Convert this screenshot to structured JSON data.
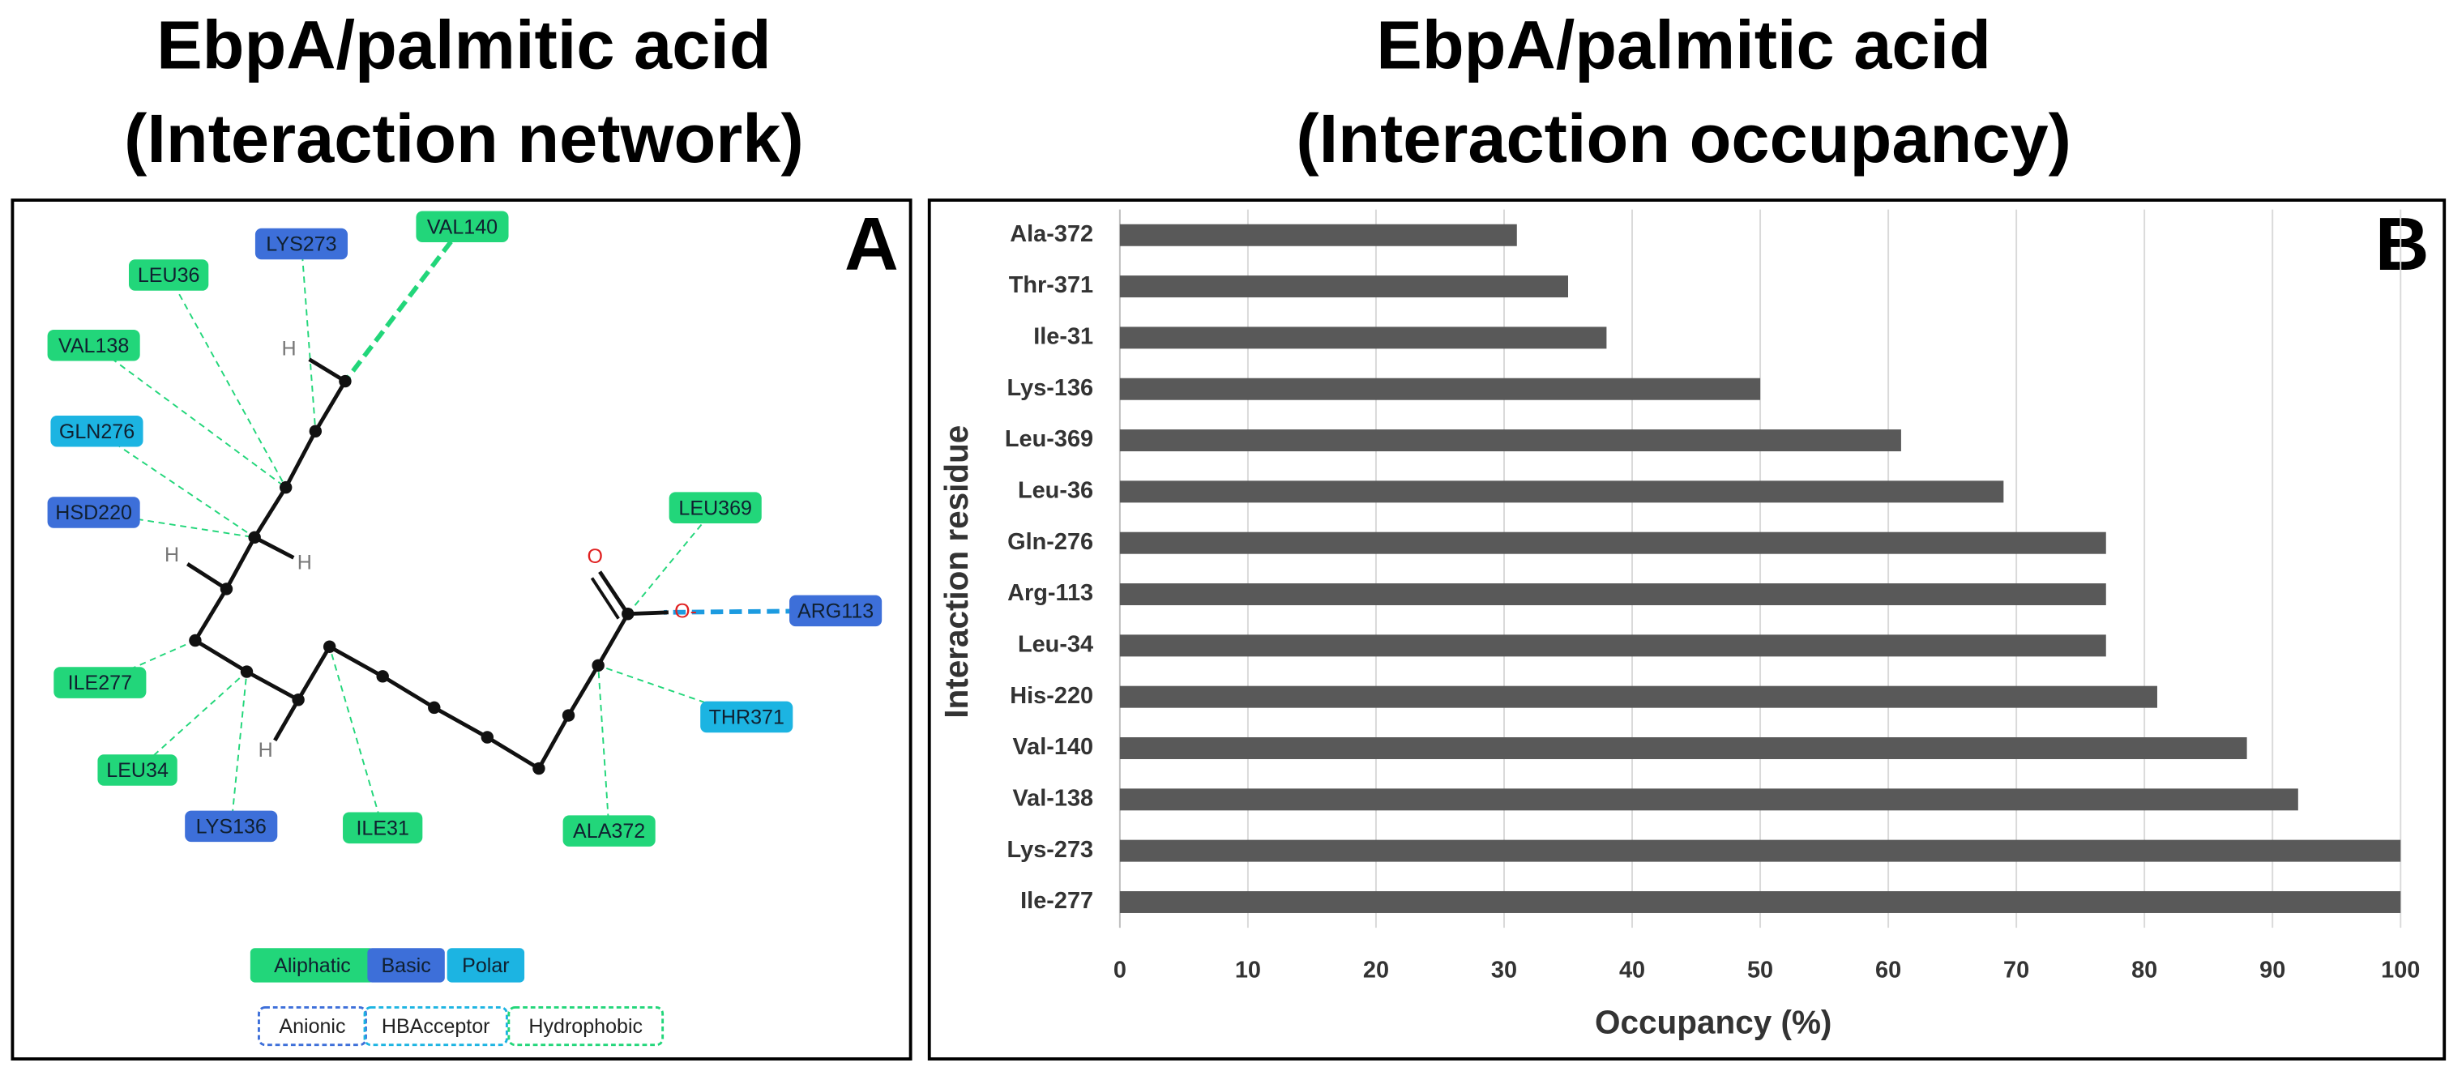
{
  "diagram": {
    "title": [
      "EbpA/palmitic acid",
      "(Interaction network)"
    ],
    "panel_label": "A",
    "nodes": [
      {
        "label": "VAL140",
        "color": "#22d67a"
      },
      {
        "label": "LYS273",
        "color": "#3d6fd9"
      },
      {
        "label": "LEU36",
        "color": "#22d67a"
      },
      {
        "label": "VAL138",
        "color": "#22d67a"
      },
      {
        "label": "GLN276",
        "color": "#1cb4e2"
      },
      {
        "label": "HSD220",
        "color": "#3d6fd9"
      },
      {
        "label": "LEU369",
        "color": "#22d67a"
      },
      {
        "label": "ARG113",
        "color": "#3d6fd9"
      },
      {
        "label": "THR371",
        "color": "#1cb4e2"
      },
      {
        "label": "ALA372",
        "color": "#22d67a"
      },
      {
        "label": "ILE31",
        "color": "#22d67a"
      },
      {
        "label": "LYS136",
        "color": "#3d6fd9"
      },
      {
        "label": "LEU34",
        "color": "#22d67a"
      },
      {
        "label": "ILE277",
        "color": "#22d67a"
      }
    ],
    "atoms": [
      "H",
      "H",
      "H",
      "H",
      "O",
      "O-"
    ],
    "legend": {
      "fill": [
        {
          "label": "Aliphatic",
          "color": "#22d67a"
        },
        {
          "label": "Basic",
          "color": "#3d6fd9"
        },
        {
          "label": "Polar",
          "color": "#1cb4e2"
        }
      ],
      "dashed": [
        {
          "label": "Anionic",
          "color": "#3d6fd9"
        },
        {
          "label": "HBAcceptor",
          "color": "#1cb4e2"
        },
        {
          "label": "Hydrophobic",
          "color": "#22d67a"
        }
      ]
    }
  },
  "chart_data": {
    "type": "hbar",
    "title": [
      "EbpA/palmitic acid",
      "(Interaction occupancy)"
    ],
    "panel_label": "B",
    "categories": [
      "Ala-372",
      "Thr-371",
      "Ile-31",
      "Lys-136",
      "Leu-369",
      "Leu-36",
      "Gln-276",
      "Arg-113",
      "Leu-34",
      "His-220",
      "Val-140",
      "Val-138",
      "Lys-273",
      "Ile-277"
    ],
    "values": [
      31,
      35,
      38,
      50,
      61,
      69,
      77,
      77,
      77,
      81,
      88,
      92,
      100,
      100
    ],
    "color": "#595959",
    "xlim": [
      0,
      100
    ],
    "xticks": [
      0,
      10,
      20,
      30,
      40,
      50,
      60,
      70,
      80,
      90,
      100
    ],
    "grid": true,
    "xlabel": "Occupancy (%)",
    "ylabel": "Interaction residue"
  }
}
